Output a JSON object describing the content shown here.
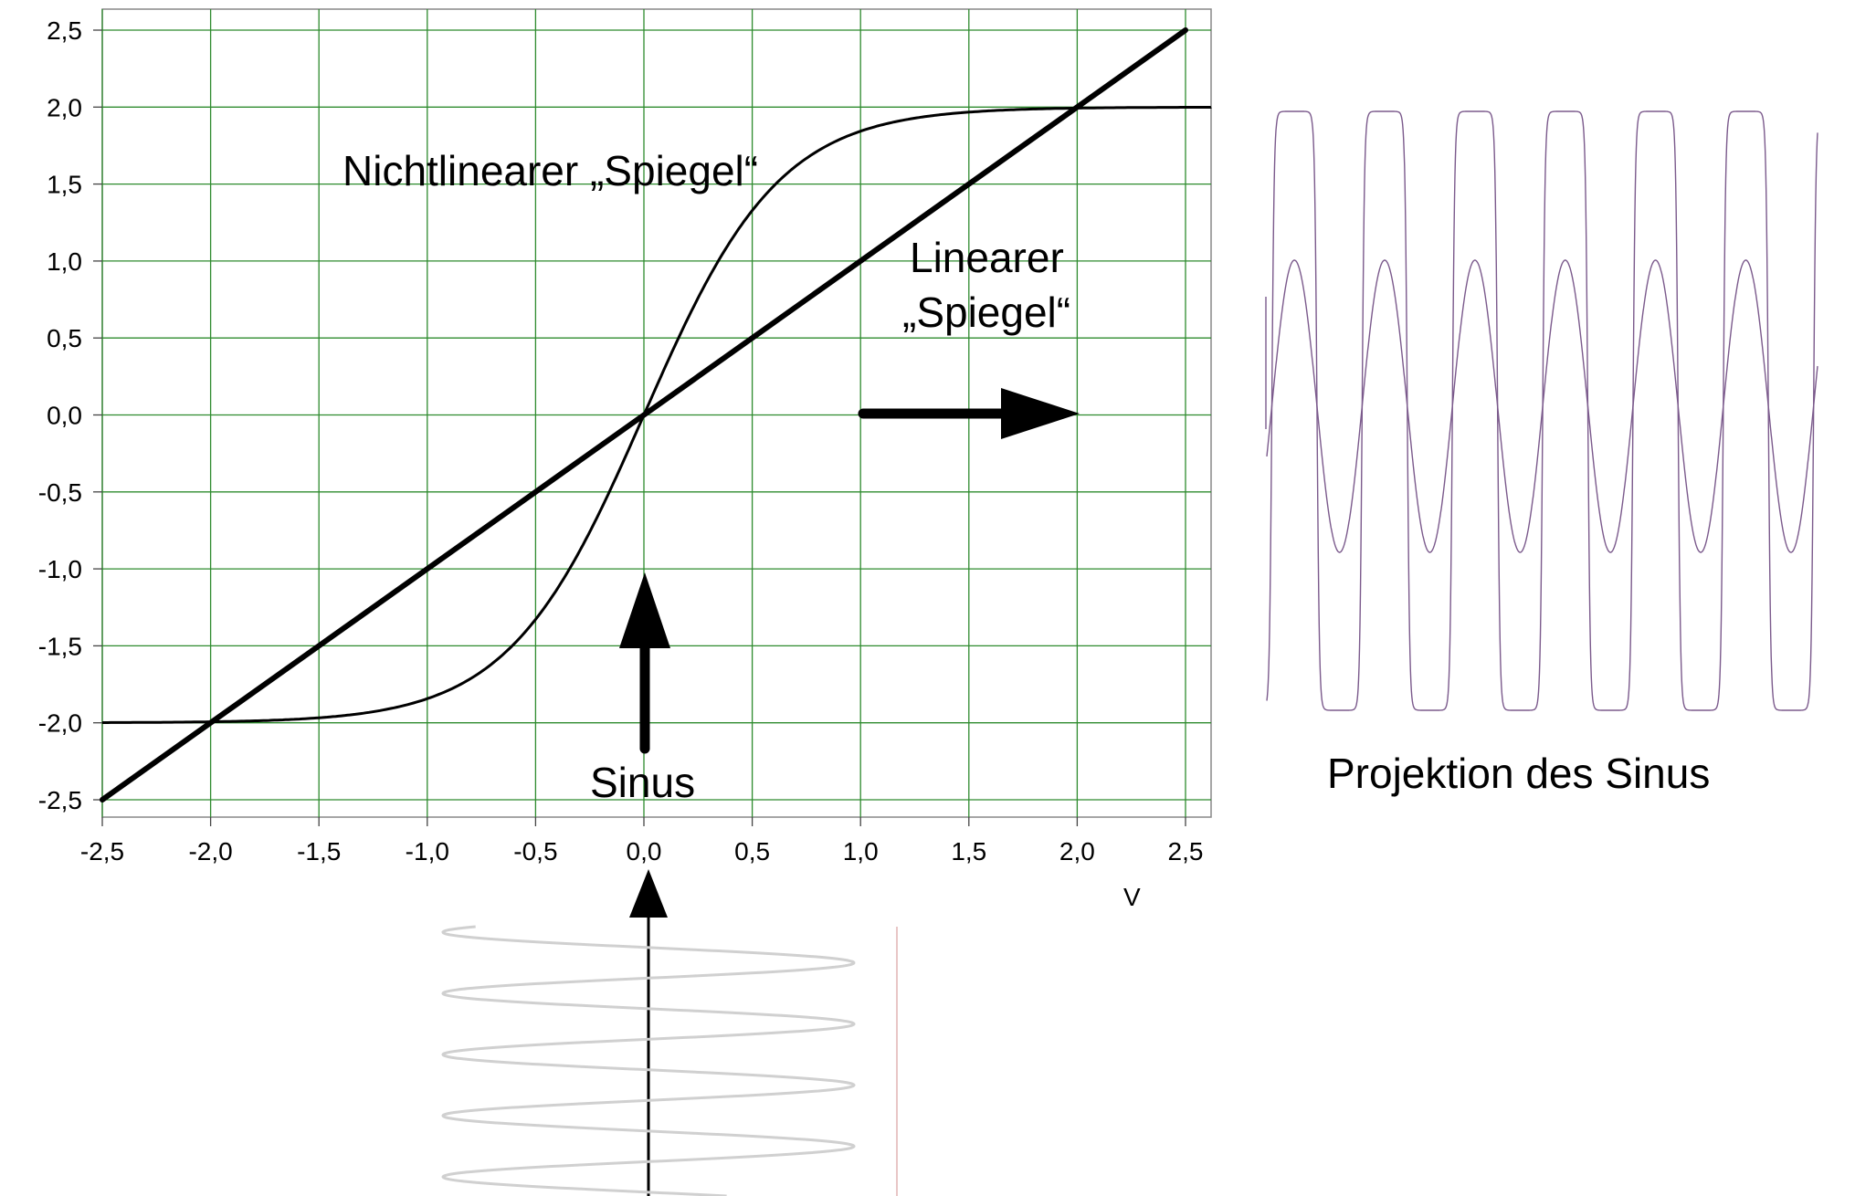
{
  "chart_data": {
    "type": "line",
    "x_ticks": [
      "-2,5",
      "-2,0",
      "-1,5",
      "-1,0",
      "-0,5",
      "0,0",
      "0,5",
      "1,0",
      "1,5",
      "2,0",
      "2,5"
    ],
    "y_ticks": [
      "2,5",
      "2,0",
      "1,5",
      "1,0",
      "0,5",
      "0,0",
      "-0,5",
      "-1,0",
      "-1,5",
      "-2,0",
      "-2,5"
    ],
    "xlabel": "V",
    "xlim": [
      -2.5,
      2.5
    ],
    "ylim": [
      -2.5,
      2.5
    ],
    "grid": true,
    "series": [
      {
        "name": "Nichtlinearer „Spiegel“",
        "x": [
          -2.5,
          -2.0,
          -1.5,
          -1.0,
          -0.75,
          -0.5,
          -0.25,
          0.0,
          0.25,
          0.5,
          0.75,
          1.0,
          1.5,
          2.0,
          2.5
        ],
        "y": [
          -2.0,
          -1.98,
          -1.93,
          -1.77,
          -1.59,
          -1.31,
          -0.78,
          0.0,
          0.78,
          1.31,
          1.59,
          1.77,
          1.93,
          1.98,
          2.0
        ]
      },
      {
        "name": "Linearer „Spiegel“",
        "x": [
          -2.5,
          2.5
        ],
        "y": [
          -2.5,
          2.5
        ]
      }
    ],
    "annotations": {
      "nonlinear_label": "Nichtlinearer „Spiegel“",
      "linear_label_line1": "Linearer",
      "linear_label_line2": "„Spiegel“",
      "sinus_label": "Sinus",
      "projection_label": "Projektion des Sinus"
    },
    "colors": {
      "grid": "#2e8b2e",
      "curves": "#000000",
      "projection_wave": "#7b5a8c",
      "input_sine": "#d0d0d0"
    }
  }
}
